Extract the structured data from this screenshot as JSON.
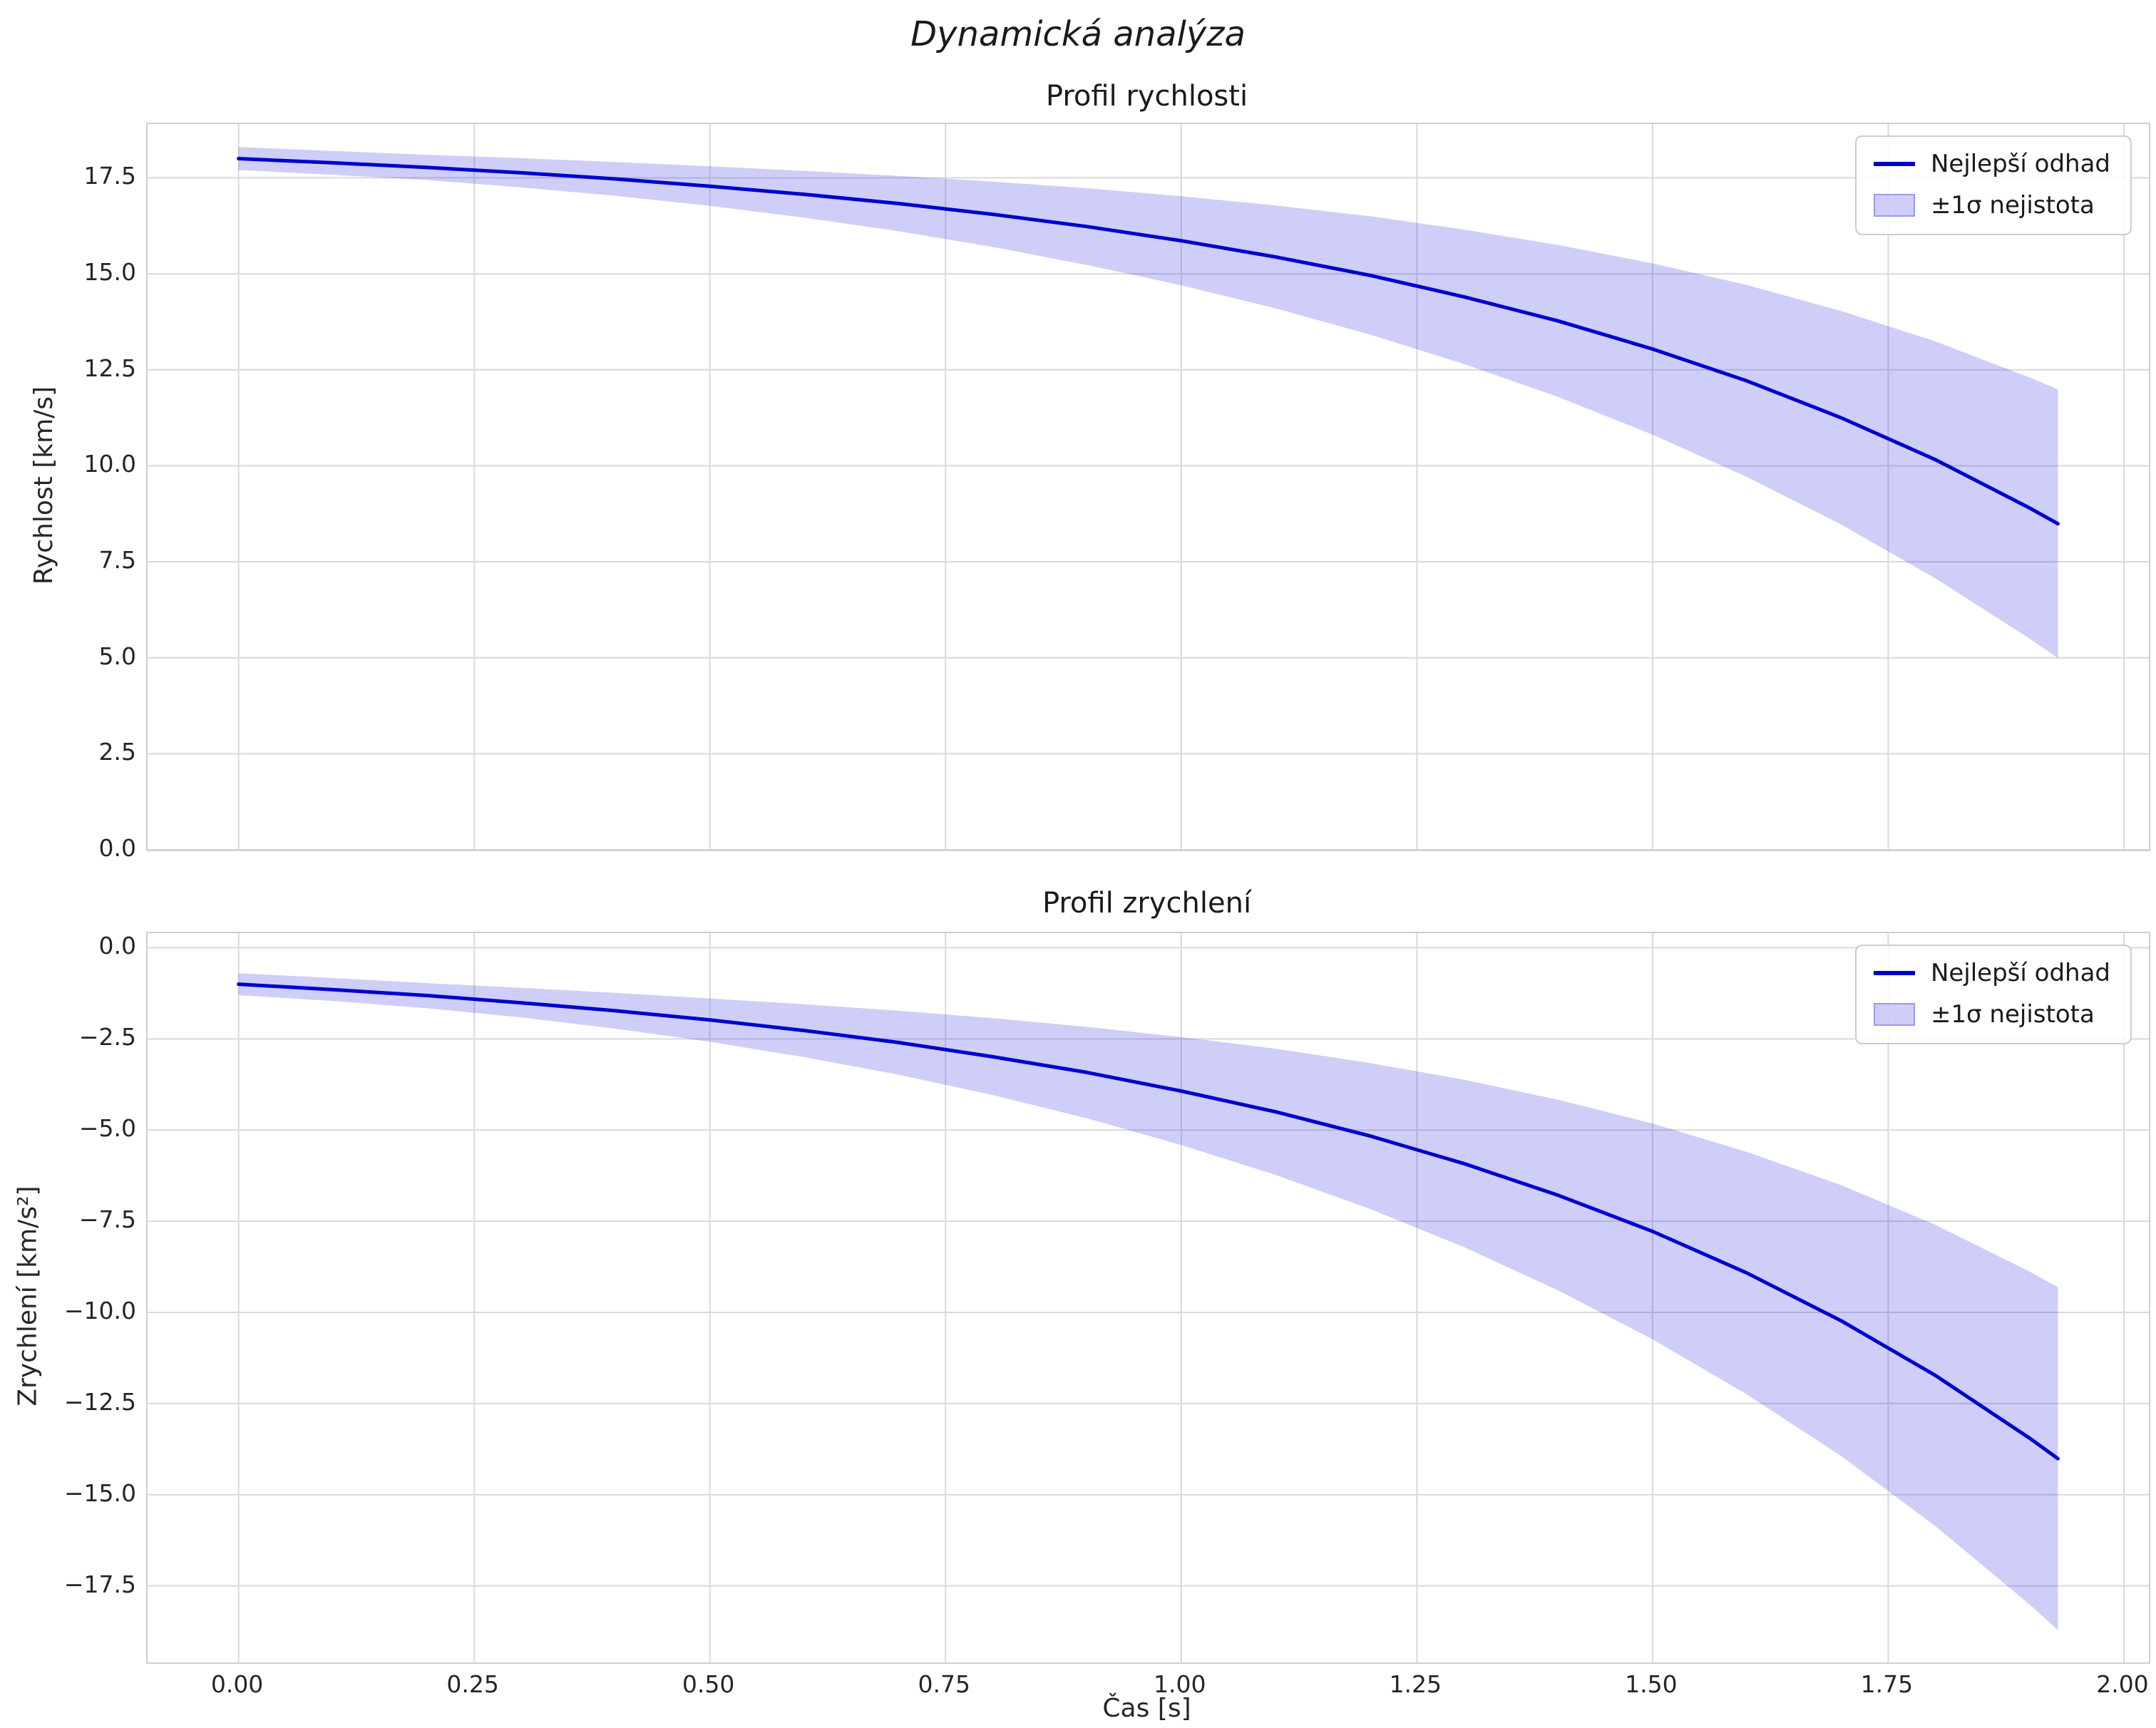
{
  "figure": {
    "title": "Dynamická analýza",
    "xlabel": "Čas [s]",
    "x_tick_values": [
      0,
      0.25,
      0.5,
      0.75,
      1.0,
      1.25,
      1.5,
      1.75,
      2.0
    ],
    "x_tick_labels": [
      "0.00",
      "0.25",
      "0.50",
      "0.75",
      "1.00",
      "1.25",
      "1.50",
      "1.75",
      "2.00"
    ],
    "legend": {
      "line_label": "Nejlepší odhad",
      "band_label": "±1σ nejistota"
    },
    "colors": {
      "line": "#0000cd",
      "band": "rgba(34,34,221,0.22)",
      "grid": "#d9d9d9",
      "axes_border": "#cfcfcf",
      "text": "#262626"
    }
  },
  "chart_data": [
    {
      "type": "line",
      "title": "Profil rychlosti",
      "ylabel": "Rychlost [km/s]",
      "xlabel": "Čas [s]",
      "xlim": [
        -0.0965,
        2.0265
      ],
      "ylim": [
        0,
        18.9
      ],
      "grid": true,
      "legend_position": "upper right",
      "y_tick_values": [
        0,
        2.5,
        5,
        7.5,
        10,
        12.5,
        15,
        17.5
      ],
      "y_tick_labels": [
        "0.0",
        "2.5",
        "5.0",
        "7.5",
        "10.0",
        "12.5",
        "15.0",
        "17.5"
      ],
      "x": [
        0,
        0.1,
        0.2,
        0.3,
        0.4,
        0.5,
        0.6,
        0.7,
        0.8,
        0.9,
        1.0,
        1.1,
        1.2,
        1.3,
        1.4,
        1.5,
        1.6,
        1.7,
        1.8,
        1.9,
        1.93
      ],
      "series": [
        {
          "name": "Nejlepší odhad",
          "values": [
            18.0,
            17.89,
            17.77,
            17.63,
            17.47,
            17.28,
            17.07,
            16.83,
            16.55,
            16.23,
            15.86,
            15.44,
            14.96,
            14.4,
            13.77,
            13.04,
            12.21,
            11.25,
            10.16,
            8.9,
            8.49
          ]
        }
      ],
      "band": {
        "name": "±1σ nejistota",
        "upper": [
          18.3,
          18.2,
          18.1,
          18.01,
          17.91,
          17.8,
          17.68,
          17.55,
          17.4,
          17.23,
          17.02,
          16.78,
          16.5,
          16.15,
          15.75,
          15.27,
          14.71,
          14.03,
          13.24,
          12.3,
          11.99
        ],
        "lower": [
          17.7,
          17.58,
          17.44,
          17.25,
          17.03,
          16.77,
          16.46,
          16.11,
          15.7,
          15.23,
          14.7,
          14.1,
          13.42,
          12.65,
          11.79,
          10.81,
          9.71,
          8.47,
          7.07,
          5.5,
          4.99
        ]
      }
    },
    {
      "type": "line",
      "title": "Profil zrychlení",
      "ylabel": "Zrychlení [km/s²]",
      "xlabel": "Čas [s]",
      "xlim": [
        -0.0965,
        2.0265
      ],
      "ylim": [
        -19.6,
        0.4
      ],
      "grid": true,
      "legend_position": "upper right",
      "y_tick_values": [
        0,
        -2.5,
        -5,
        -7.5,
        -10,
        -12.5,
        -15,
        -17.5
      ],
      "y_tick_labels": [
        "0.0",
        "−2.5",
        "−5.0",
        "−7.5",
        "−10.0",
        "−12.5",
        "−15.0",
        "−17.5"
      ],
      "x": [
        0,
        0.1,
        0.2,
        0.3,
        0.4,
        0.5,
        0.6,
        0.7,
        0.8,
        0.9,
        1.0,
        1.1,
        1.2,
        1.3,
        1.4,
        1.5,
        1.6,
        1.7,
        1.8,
        1.9,
        1.93
      ],
      "series": [
        {
          "name": "Nejlepší odhad",
          "values": [
            -1.0,
            -1.15,
            -1.31,
            -1.51,
            -1.73,
            -1.98,
            -2.27,
            -2.6,
            -2.99,
            -3.42,
            -3.93,
            -4.5,
            -5.16,
            -5.92,
            -6.79,
            -7.78,
            -8.92,
            -10.23,
            -11.73,
            -13.45,
            -14.01
          ]
        }
      ],
      "band": {
        "name": "±1σ nejistota",
        "upper": [
          -0.7,
          -0.83,
          -0.97,
          -1.1,
          -1.24,
          -1.39,
          -1.55,
          -1.73,
          -1.93,
          -2.17,
          -2.45,
          -2.77,
          -3.16,
          -3.62,
          -4.17,
          -4.82,
          -5.6,
          -6.51,
          -7.6,
          -8.88,
          -9.31
        ],
        "lower": [
          -1.3,
          -1.46,
          -1.66,
          -1.91,
          -2.22,
          -2.58,
          -3.0,
          -3.48,
          -4.04,
          -4.68,
          -5.41,
          -6.23,
          -7.16,
          -8.21,
          -9.4,
          -10.74,
          -12.25,
          -13.94,
          -15.86,
          -18.01,
          -18.71
        ]
      }
    }
  ]
}
